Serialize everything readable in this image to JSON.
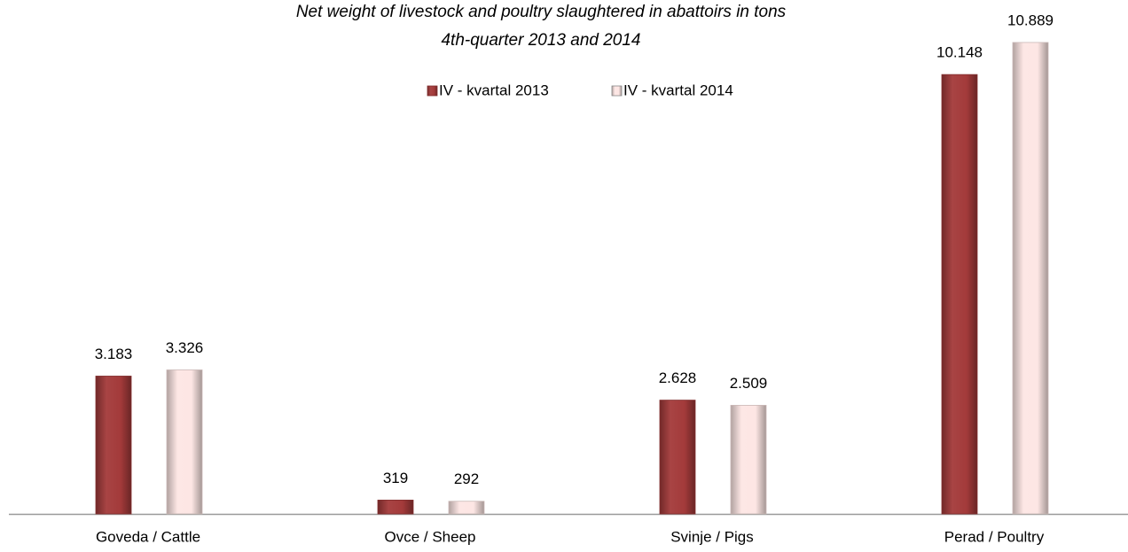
{
  "chart_data": {
    "type": "bar",
    "title": "Net weight of livestock and poultry slaughtered in abattoirs in tons",
    "subtitle": "4th-quarter 2013 and 2014",
    "categories": [
      "Goveda / Cattle",
      "Ovce / Sheep",
      "Svinje / Pigs",
      "Perad / Poultry"
    ],
    "series": [
      {
        "name": "IV - kvartal 2013",
        "color": "#a33a3a",
        "values": [
          3183,
          319,
          2628,
          10148
        ],
        "value_labels": [
          "3.183",
          "319",
          "2.628",
          "10.148"
        ]
      },
      {
        "name": "IV - kvartal 2014",
        "color": "#fde6e4",
        "values": [
          3326,
          292,
          2509,
          10889
        ],
        "value_labels": [
          "3.326",
          "292",
          "2.509",
          "10.889"
        ]
      }
    ],
    "ylim": [
      0,
      11000
    ]
  }
}
